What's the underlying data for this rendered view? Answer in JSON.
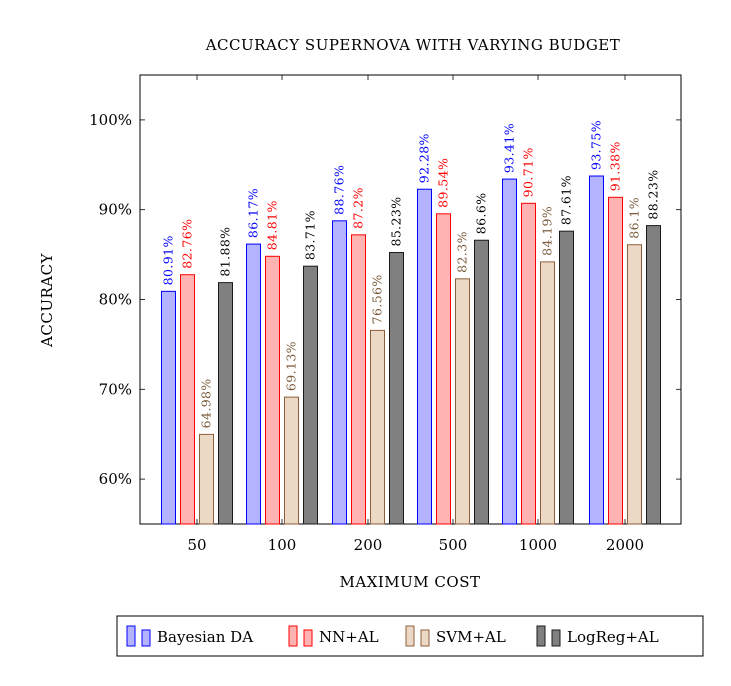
{
  "chart_data": {
    "type": "bar",
    "title": "ACCURACY SUPERNOVA WITH VARYING BUDGET",
    "xlabel": "MAXIMUM COST",
    "ylabel": "ACCURACY",
    "categories": [
      "50",
      "100",
      "200",
      "500",
      "1000",
      "2000"
    ],
    "ylim": [
      55,
      105
    ],
    "yticks": [
      60,
      70,
      80,
      90,
      100
    ],
    "ytick_labels": [
      "60%",
      "70%",
      "80%",
      "90%",
      "100%"
    ],
    "grid": false,
    "legend_position": "bottom",
    "series": [
      {
        "name": "Bayesian DA",
        "values": [
          80.91,
          86.17,
          88.76,
          92.28,
          93.41,
          93.75
        ],
        "labels": [
          "80.91%",
          "86.17%",
          "88.76%",
          "92.28%",
          "93.41%",
          "93.75%"
        ],
        "fill": "#b3b3ff",
        "stroke": "#0000ff",
        "text_color": "#0000ff"
      },
      {
        "name": "NN+AL",
        "values": [
          82.76,
          84.81,
          87.2,
          89.54,
          90.71,
          91.38
        ],
        "labels": [
          "82.76%",
          "84.81%",
          "87.2%",
          "89.54%",
          "90.71%",
          "91.38%"
        ],
        "fill": "#ffb3b3",
        "stroke": "#ff0000",
        "text_color": "#ff0000"
      },
      {
        "name": "SVM+AL",
        "values": [
          64.98,
          69.13,
          76.56,
          82.3,
          84.19,
          86.1
        ],
        "labels": [
          "64.98%",
          "69.13%",
          "76.56%",
          "82.3%",
          "84.19%",
          "86.1%"
        ],
        "fill": "#ebd9c6",
        "stroke": "#8b5e3c",
        "text_color": "#7a5a3a"
      },
      {
        "name": "LogReg+AL",
        "values": [
          81.88,
          83.71,
          85.23,
          86.6,
          87.61,
          88.23
        ],
        "labels": [
          "81.88%",
          "83.71%",
          "85.23%",
          "86.6%",
          "87.61%",
          "88.23%"
        ],
        "fill": "#808080",
        "stroke": "#1a1a1a",
        "text_color": "#000000"
      }
    ]
  }
}
